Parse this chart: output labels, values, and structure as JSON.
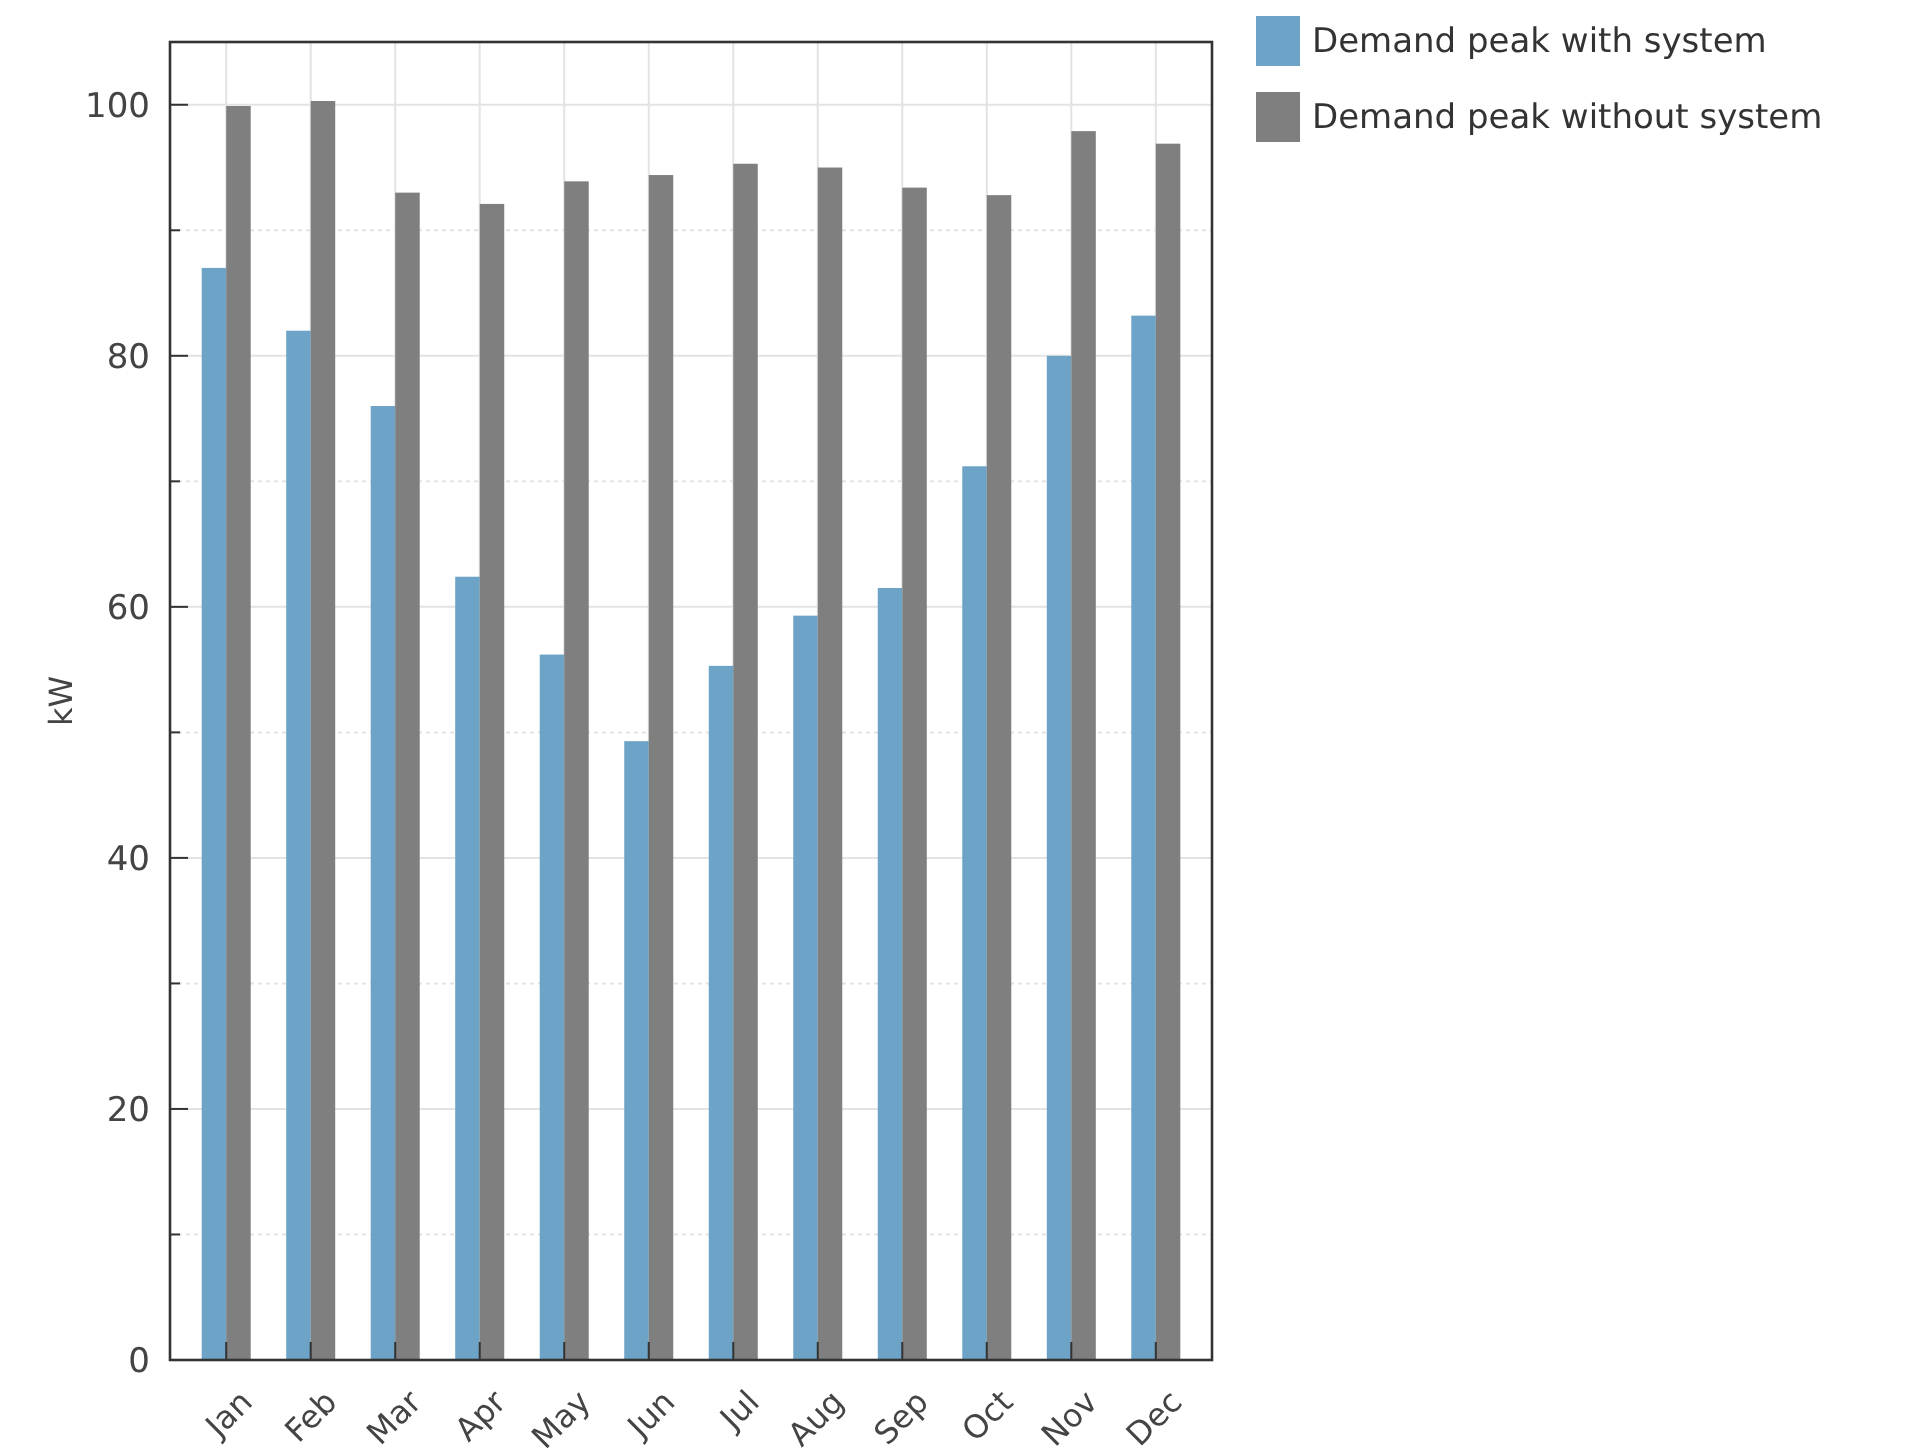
{
  "chart_data": {
    "type": "bar",
    "ylabel": "kW",
    "categories": [
      "Jan",
      "Feb",
      "Mar",
      "Apr",
      "May",
      "Jun",
      "Jul",
      "Aug",
      "Sep",
      "Oct",
      "Nov",
      "Dec"
    ],
    "series": [
      {
        "name": "Demand peak with system",
        "color": "#6ca3c6",
        "values": [
          87.0,
          82.0,
          76.0,
          62.4,
          56.2,
          49.3,
          55.3,
          59.3,
          61.5,
          71.2,
          80.0,
          83.2
        ]
      },
      {
        "name": "Demand peak without system",
        "color": "#7f7f7f",
        "values": [
          99.9,
          100.3,
          93.0,
          92.1,
          93.9,
          94.4,
          95.3,
          95.0,
          93.4,
          92.8,
          97.9,
          96.9
        ]
      }
    ],
    "ylim": [
      0,
      105
    ],
    "yticks": [
      0,
      {
        "value": 10,
        "label": null
      },
      20,
      {
        "value": 30,
        "label": null
      },
      40,
      {
        "value": 50,
        "label": null
      },
      60,
      {
        "value": 70,
        "label": null
      },
      80,
      {
        "value": 90,
        "label": null
      },
      100
    ],
    "grid": true,
    "legend": "top right"
  }
}
